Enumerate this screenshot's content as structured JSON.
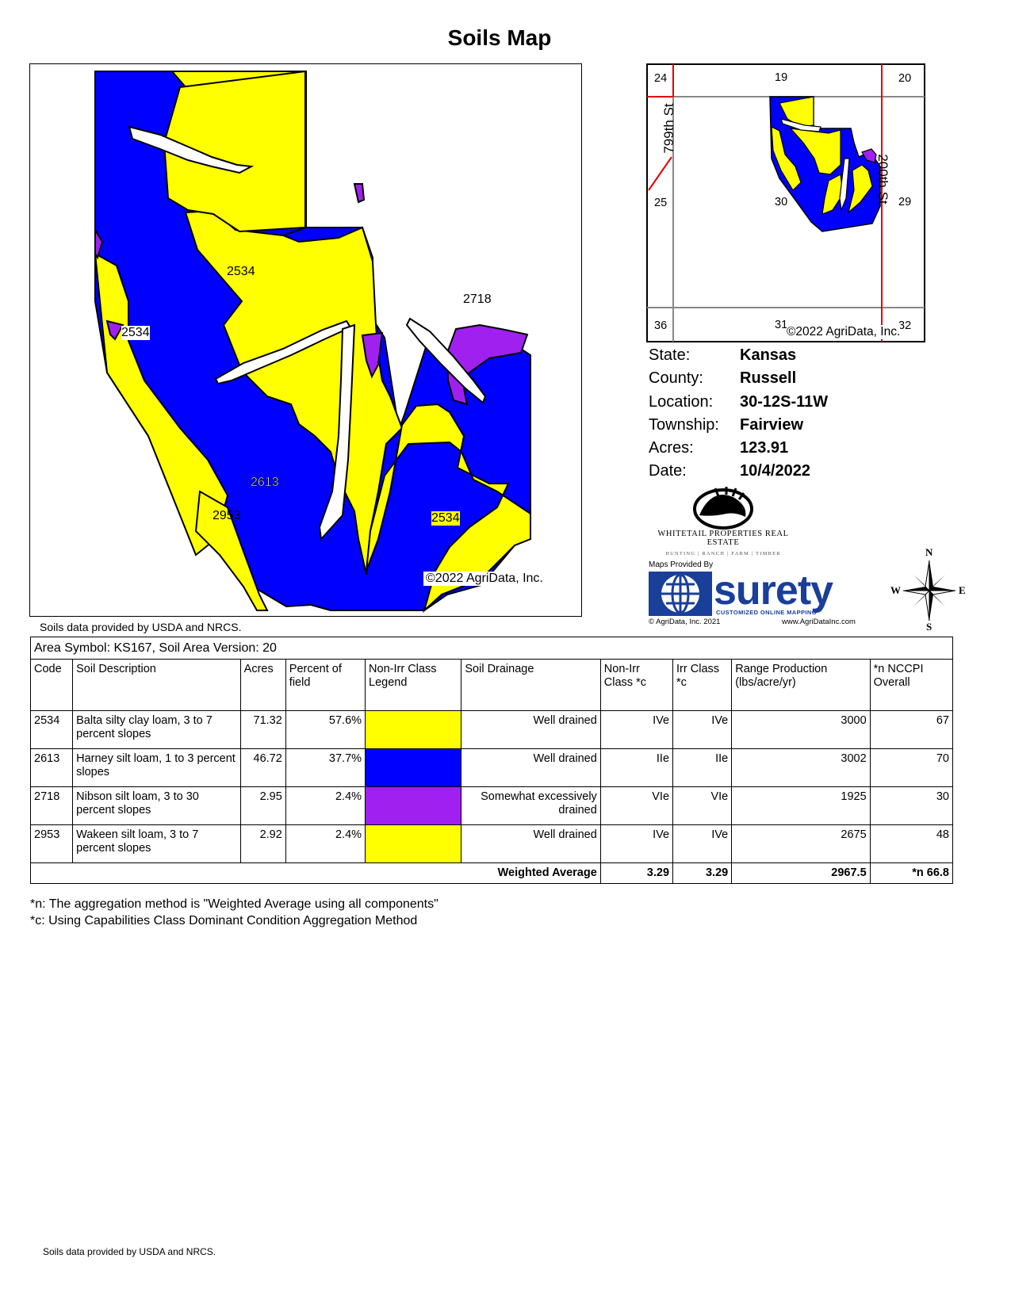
{
  "title": "Soils Map",
  "main_map": {
    "labels": [
      "2534",
      "2534",
      "2718",
      "2613",
      "2953",
      "2534"
    ],
    "copyright": "©2022 AgriData, Inc."
  },
  "soils_source": "Soils data provided by USDA and NRCS.",
  "locator_map": {
    "sections": [
      "24",
      "19",
      "20",
      "25",
      "30",
      "29",
      "36",
      "31",
      "32"
    ],
    "roads": [
      "799th St",
      "200th St"
    ],
    "copyright": "©2022 AgriData, Inc."
  },
  "info": [
    {
      "label": "State:",
      "value": "Kansas"
    },
    {
      "label": "County:",
      "value": "Russell"
    },
    {
      "label": "Location:",
      "value": "30-12S-11W"
    },
    {
      "label": "Township:",
      "value": "Fairview"
    },
    {
      "label": "Acres:",
      "value": "123.91"
    },
    {
      "label": "Date:",
      "value": "10/4/2022"
    }
  ],
  "whitetail": {
    "name": "Whitetail Properties Real Estate",
    "tagline": "HUNTING | RANCH | FARM | TIMBER"
  },
  "surety": {
    "provided_by": "Maps Provided By",
    "brand": "surety",
    "tagline": "CUSTOMIZED ONLINE MAPPING",
    "copyright": "© AgriData, Inc. 2021",
    "url": "www.AgriDataInc.com"
  },
  "compass": {
    "n": "N",
    "s": "S",
    "e": "E",
    "w": "W"
  },
  "table": {
    "area_symbol": "Area Symbol: KS167, Soil Area Version: 20",
    "headers": [
      "Code",
      "Soil Description",
      "Acres",
      "Percent of field",
      "Non-Irr Class Legend",
      "Soil Drainage",
      "Non-Irr Class *c",
      "Irr Class *c",
      "Range Production (lbs/acre/yr)",
      "*n NCCPI Overall"
    ],
    "rows": [
      {
        "code": "2534",
        "description": "Balta silty clay loam, 3 to 7 percent slopes",
        "acres": "71.32",
        "percent": "57.6%",
        "legend_color": "#ffff00",
        "drainage": "Well drained",
        "nonirr": "IVe",
        "irr": "IVe",
        "range": "3000",
        "nccpi": "67"
      },
      {
        "code": "2613",
        "description": "Harney silt loam, 1 to 3 percent slopes",
        "acres": "46.72",
        "percent": "37.7%",
        "legend_color": "#0000ff",
        "drainage": "Well drained",
        "nonirr": "IIe",
        "irr": "IIe",
        "range": "3002",
        "nccpi": "70"
      },
      {
        "code": "2718",
        "description": "Nibson silt loam, 3 to 30 percent slopes",
        "acres": "2.95",
        "percent": "2.4%",
        "legend_color": "#a020f0",
        "drainage": "Somewhat excessively drained",
        "nonirr": "VIe",
        "irr": "VIe",
        "range": "1925",
        "nccpi": "30"
      },
      {
        "code": "2953",
        "description": "Wakeen silt loam, 3 to 7 percent slopes",
        "acres": "2.92",
        "percent": "2.4%",
        "legend_color": "#ffff00",
        "drainage": "Well drained",
        "nonirr": "IVe",
        "irr": "IVe",
        "range": "2675",
        "nccpi": "48"
      }
    ],
    "footer": {
      "label": "Weighted Average",
      "nonirr": "3.29",
      "irr": "3.29",
      "range": "2967.5",
      "nccpi": "*n 66.8"
    }
  },
  "notes": [
    "*n: The aggregation method is \"Weighted Average using all components\"",
    "*c:  Using Capabilities Class Dominant Condition Aggregation Method"
  ],
  "colors": {
    "soil_yellow": "#ffff00",
    "soil_blue": "#0000ff",
    "soil_purple": "#a020f0",
    "road_red": "#e00000",
    "brand_blue": "#1a3f9a"
  }
}
